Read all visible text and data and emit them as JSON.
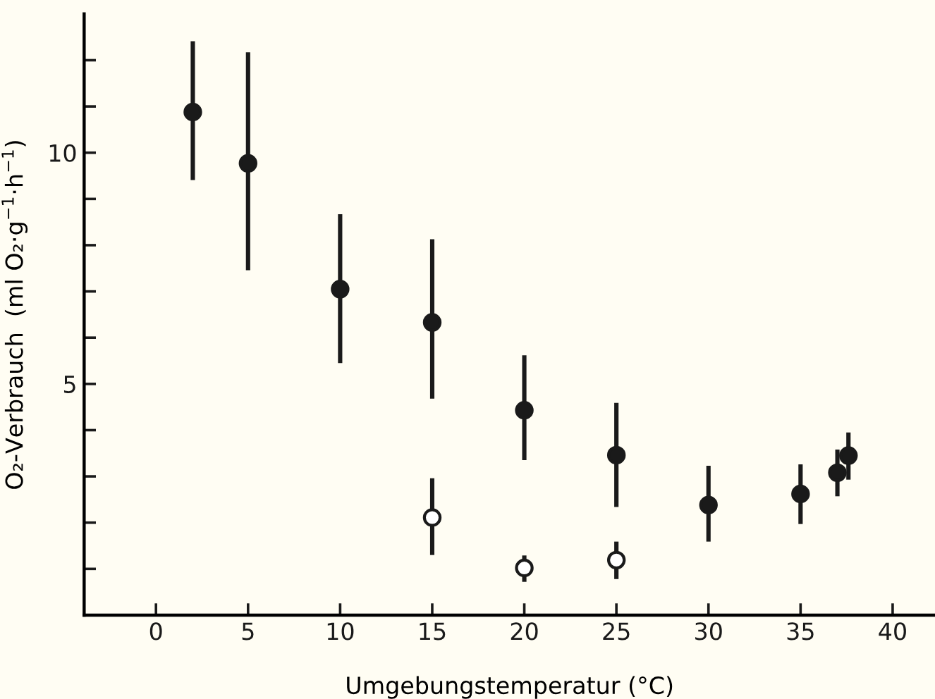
{
  "chart_data": {
    "type": "scatter",
    "xlabel": "Umgebungstemperatur (°C)",
    "ylabel": "O₂-Verbrauch  (ml O₂·g$^{−1}$·h$^{−1}$)",
    "xlim": [
      -3.9,
      42.3
    ],
    "ylim": [
      0,
      13
    ],
    "xticks": [
      0,
      5,
      10,
      15,
      20,
      25,
      30,
      35,
      40
    ],
    "yticks": [
      {
        "value": 1,
        "label": null
      },
      {
        "value": 2,
        "label": null
      },
      {
        "value": 3,
        "label": null
      },
      {
        "value": 4,
        "label": null
      },
      5,
      {
        "value": 6,
        "label": null
      },
      {
        "value": 7,
        "label": null
      },
      {
        "value": 8,
        "label": null
      },
      {
        "value": 9,
        "label": null
      },
      10,
      {
        "value": 11,
        "label": null
      },
      {
        "value": 12,
        "label": null
      }
    ],
    "grid": false,
    "legend": false,
    "marker": "circle",
    "series": [
      {
        "color": "#1a1a1a",
        "x": [
          2,
          5,
          10,
          15,
          20,
          25,
          30,
          35,
          37,
          37.6
        ],
        "values": [
          10.88,
          9.77,
          7.05,
          6.33,
          4.43,
          3.46,
          2.38,
          2.62,
          3.08,
          3.45
        ],
        "errors": [
          [
            9.41,
            12.41
          ],
          [
            7.46,
            12.17
          ],
          [
            5.45,
            8.67
          ],
          [
            4.68,
            8.13
          ],
          [
            3.35,
            5.62
          ],
          [
            2.34,
            4.59
          ],
          [
            1.59,
            3.23
          ],
          [
            1.97,
            3.26
          ],
          [
            2.57,
            3.58
          ],
          [
            2.93,
            3.95
          ]
        ]
      },
      {
        "color": "#ffffff",
        "x": [
          15,
          20,
          25
        ],
        "values": [
          2.11,
          1.02,
          1.19
        ],
        "errors": [
          [
            1.3,
            2.96
          ],
          [
            0.72,
            1.29
          ],
          [
            0.78,
            1.59
          ]
        ]
      }
    ]
  }
}
